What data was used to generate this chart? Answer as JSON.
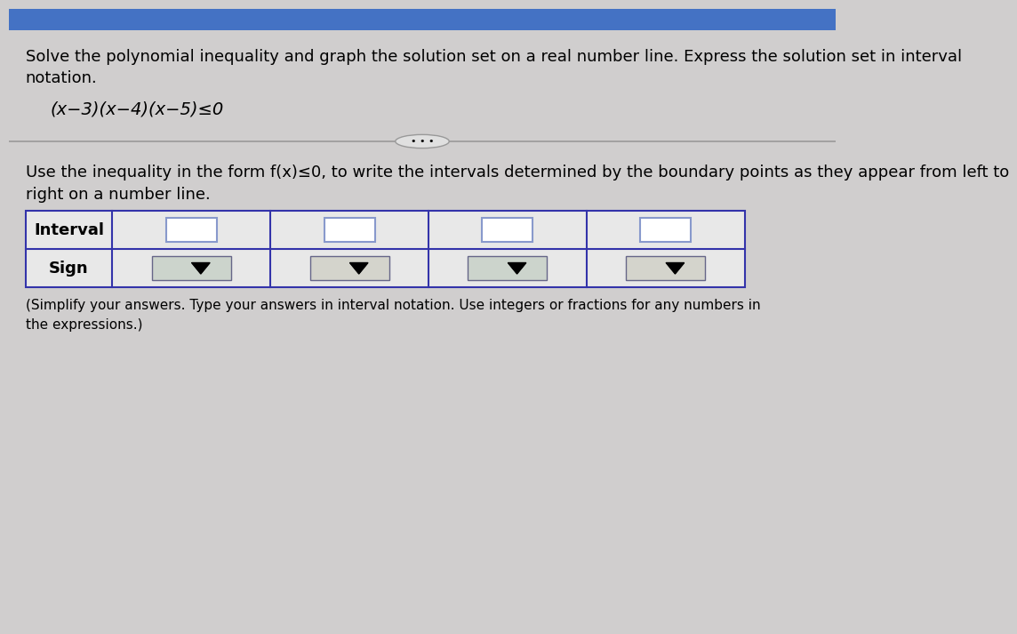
{
  "bg_color": "#d0cece",
  "top_bar_color": "#4472c4",
  "title_text1": "Solve the polynomial inequality and graph the solution set on a real number line. Express the solution set in interval",
  "title_text2": "notation.",
  "equation": "(x−3)(x−4)(x−5)≤0",
  "divider_text": "• • •",
  "instruction_text1": "Use the inequality in the form f(x)≤0, to write the intervals determined by the boundary points as they appear from left to",
  "instruction_text2": "right on a number line.",
  "row1_label": "Interval",
  "row2_label": "Sign",
  "note_text1": "(Simplify your answers. Type your answers in interval notation. Use integers or fractions for any numbers in",
  "note_text2": "the expressions.)",
  "table_bg": "#e8e8e8",
  "table_border": "#3333aa",
  "input_box_border": "#8899cc",
  "dropdown_bg": "#c8d0c8",
  "num_data_cols": 4,
  "font_size_main": 13,
  "font_size_eq": 14,
  "font_size_table": 13
}
